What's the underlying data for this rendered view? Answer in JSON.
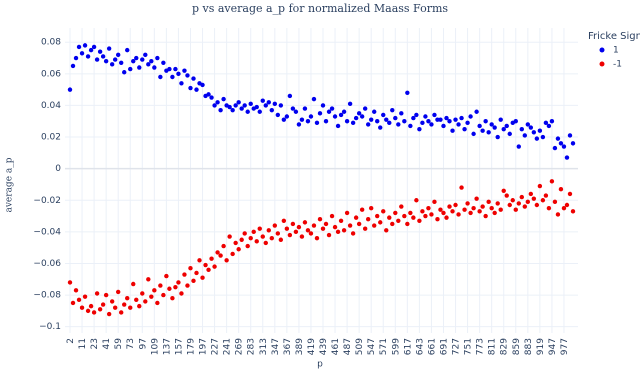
{
  "chart_data": {
    "type": "scatter",
    "title": "p vs average a_p for normalized Maass Forms",
    "x_label": "p",
    "y_label": "average a_p",
    "legend_title": "Fricke Sign",
    "legend_position": "top-right",
    "grid": true,
    "categories": [
      "2",
      null,
      null,
      null,
      "11",
      null,
      null,
      null,
      "23",
      null,
      null,
      null,
      "41",
      null,
      null,
      null,
      "59",
      null,
      null,
      null,
      "73",
      null,
      null,
      null,
      "97",
      null,
      null,
      null,
      "109",
      null,
      null,
      null,
      "137",
      null,
      null,
      null,
      "157",
      null,
      null,
      null,
      "179",
      null,
      null,
      null,
      "197",
      null,
      null,
      null,
      "227",
      null,
      null,
      null,
      "241",
      null,
      null,
      null,
      "269",
      null,
      null,
      null,
      "283",
      null,
      null,
      null,
      "313",
      null,
      null,
      null,
      "347",
      null,
      null,
      null,
      "367",
      null,
      null,
      null,
      "389",
      null,
      null,
      null,
      "419",
      null,
      null,
      null,
      "439",
      null,
      null,
      null,
      "461",
      null,
      null,
      null,
      "487",
      null,
      null,
      null,
      "509",
      null,
      null,
      null,
      "547",
      null,
      null,
      null,
      "571",
      null,
      null,
      null,
      "599",
      null,
      null,
      null,
      "617",
      null,
      null,
      null,
      "643",
      null,
      null,
      null,
      "661",
      null,
      null,
      null,
      "691",
      null,
      null,
      null,
      "727",
      null,
      null,
      null,
      "751",
      null,
      null,
      null,
      "773",
      null,
      null,
      null,
      "811",
      null,
      null,
      null,
      "829",
      null,
      null,
      null,
      "859",
      null,
      null,
      null,
      "883",
      null,
      null,
      null,
      "919",
      null,
      null,
      null,
      "947",
      null,
      null,
      null,
      "977",
      null,
      null,
      null
    ],
    "series": [
      {
        "name": "1",
        "color": "#0000ee",
        "values": [
          0.05,
          0.065,
          0.07,
          0.077,
          0.073,
          0.078,
          0.071,
          0.075,
          0.077,
          0.069,
          0.074,
          0.071,
          0.068,
          0.076,
          0.066,
          0.069,
          0.072,
          0.067,
          0.061,
          0.075,
          0.063,
          0.068,
          0.07,
          0.064,
          0.069,
          0.072,
          0.066,
          0.068,
          0.064,
          0.07,
          0.058,
          0.067,
          0.062,
          0.063,
          0.058,
          0.063,
          0.06,
          0.054,
          0.062,
          0.059,
          0.051,
          0.057,
          0.05,
          0.054,
          0.053,
          0.046,
          0.047,
          0.045,
          0.04,
          0.042,
          0.037,
          0.044,
          0.04,
          0.039,
          0.037,
          0.04,
          0.042,
          0.038,
          0.04,
          0.036,
          0.041,
          0.038,
          0.039,
          0.036,
          0.043,
          0.04,
          0.042,
          0.037,
          0.041,
          0.034,
          0.04,
          0.031,
          0.033,
          0.046,
          0.038,
          0.036,
          0.028,
          0.031,
          0.038,
          0.03,
          0.033,
          0.044,
          0.029,
          0.035,
          0.04,
          0.03,
          0.036,
          0.038,
          0.033,
          0.027,
          0.034,
          0.036,
          0.03,
          0.041,
          0.029,
          0.032,
          0.035,
          0.033,
          0.038,
          0.028,
          0.031,
          0.036,
          0.03,
          0.026,
          0.034,
          0.031,
          0.029,
          0.037,
          0.032,
          0.028,
          0.035,
          0.03,
          0.048,
          0.027,
          0.032,
          0.034,
          0.025,
          0.029,
          0.033,
          0.03,
          0.028,
          0.034,
          0.031,
          0.031,
          0.027,
          0.032,
          0.03,
          0.024,
          0.031,
          0.028,
          0.032,
          0.025,
          0.029,
          0.033,
          0.022,
          0.036,
          0.027,
          0.024,
          0.03,
          0.023,
          0.028,
          0.026,
          0.02,
          0.031,
          0.025,
          0.027,
          0.022,
          0.029,
          0.03,
          0.014,
          0.025,
          0.021,
          0.028,
          0.026,
          0.023,
          0.019,
          0.024,
          0.02,
          0.029,
          0.027,
          0.03,
          0.013,
          0.019,
          0.016,
          0.014,
          0.007,
          0.021,
          0.016
        ]
      },
      {
        "name": "-1",
        "color": "#ee0000",
        "values": [
          -0.072,
          -0.085,
          -0.077,
          -0.083,
          -0.088,
          -0.081,
          -0.09,
          -0.087,
          -0.091,
          -0.079,
          -0.089,
          -0.086,
          -0.08,
          -0.092,
          -0.084,
          -0.088,
          -0.078,
          -0.091,
          -0.086,
          -0.082,
          -0.088,
          -0.073,
          -0.083,
          -0.087,
          -0.079,
          -0.084,
          -0.07,
          -0.081,
          -0.077,
          -0.085,
          -0.074,
          -0.08,
          -0.068,
          -0.076,
          -0.082,
          -0.075,
          -0.072,
          -0.079,
          -0.067,
          -0.074,
          -0.063,
          -0.071,
          -0.066,
          -0.058,
          -0.069,
          -0.061,
          -0.064,
          -0.057,
          -0.062,
          -0.053,
          -0.055,
          -0.049,
          -0.058,
          -0.043,
          -0.054,
          -0.047,
          -0.051,
          -0.045,
          -0.041,
          -0.049,
          -0.044,
          -0.04,
          -0.046,
          -0.038,
          -0.043,
          -0.047,
          -0.039,
          -0.044,
          -0.036,
          -0.041,
          -0.045,
          -0.033,
          -0.038,
          -0.042,
          -0.035,
          -0.04,
          -0.037,
          -0.043,
          -0.034,
          -0.039,
          -0.041,
          -0.036,
          -0.044,
          -0.032,
          -0.038,
          -0.035,
          -0.042,
          -0.03,
          -0.037,
          -0.04,
          -0.033,
          -0.039,
          -0.028,
          -0.036,
          -0.041,
          -0.031,
          -0.035,
          -0.026,
          -0.038,
          -0.032,
          -0.025,
          -0.036,
          -0.03,
          -0.034,
          -0.027,
          -0.039,
          -0.031,
          -0.035,
          -0.028,
          -0.033,
          -0.024,
          -0.03,
          -0.035,
          -0.028,
          -0.031,
          -0.02,
          -0.033,
          -0.027,
          -0.03,
          -0.025,
          -0.029,
          -0.021,
          -0.032,
          -0.026,
          -0.028,
          -0.031,
          -0.024,
          -0.027,
          -0.023,
          -0.029,
          -0.012,
          -0.026,
          -0.022,
          -0.028,
          -0.025,
          -0.019,
          -0.027,
          -0.024,
          -0.03,
          -0.021,
          -0.025,
          -0.028,
          -0.022,
          -0.026,
          -0.014,
          -0.017,
          -0.023,
          -0.02,
          -0.026,
          -0.022,
          -0.018,
          -0.024,
          -0.021,
          -0.016,
          -0.019,
          -0.023,
          -0.011,
          -0.02,
          -0.017,
          -0.025,
          -0.008,
          -0.021,
          -0.029,
          -0.013,
          -0.025,
          -0.023,
          -0.016,
          -0.027
        ]
      }
    ],
    "ylim": [
      -0.104,
      0.089
    ],
    "yticks": [
      0.08,
      0.06,
      0.04,
      0.02,
      0,
      {
        "value": -0.02,
        "label": "−0.02"
      },
      {
        "value": -0.04,
        "label": "−0.04"
      },
      {
        "value": -0.06,
        "label": "−0.06"
      },
      {
        "value": -0.08,
        "label": "−0.08"
      },
      {
        "value": -0.1,
        "label": "−0.1"
      }
    ]
  }
}
